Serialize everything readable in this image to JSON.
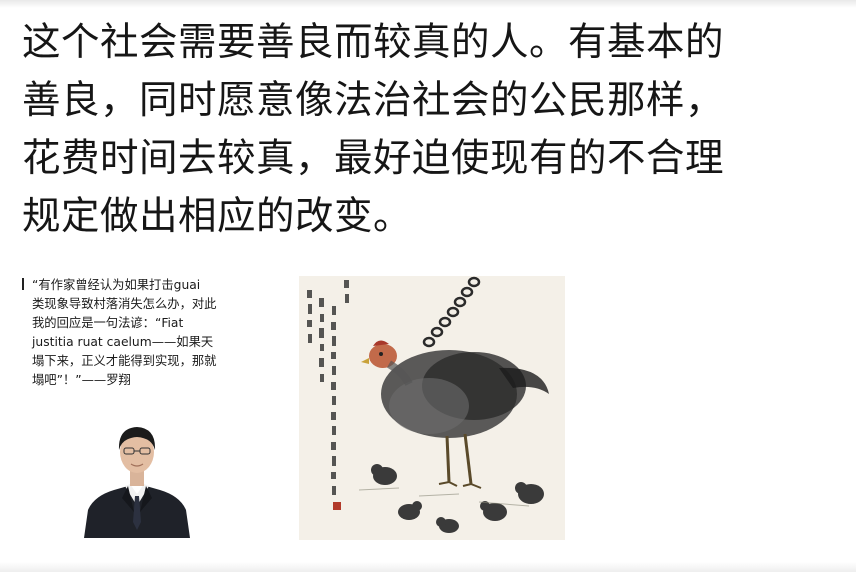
{
  "post": {
    "lines": [
      "这个社会需要善良而较真的人。有基本的",
      "善良，同时愿意像法治社会的公民那样，",
      "花费时间去较真，最好迫使现有的不合理",
      "规定做出相应的改变。"
    ]
  },
  "images": {
    "left": {
      "quote_lines": [
        "“有作家曾经认为如果打击guai",
        "类现象导致村落消失怎么办，对此",
        "我的回应是一句法谚：“Fiat",
        "justitia ruat caelum——如果天",
        "塌下来，正义才能得到实现，那就",
        "塌吧”！”——罗翔"
      ]
    }
  },
  "colors": {
    "text": "#161616",
    "background": "#ffffff"
  }
}
